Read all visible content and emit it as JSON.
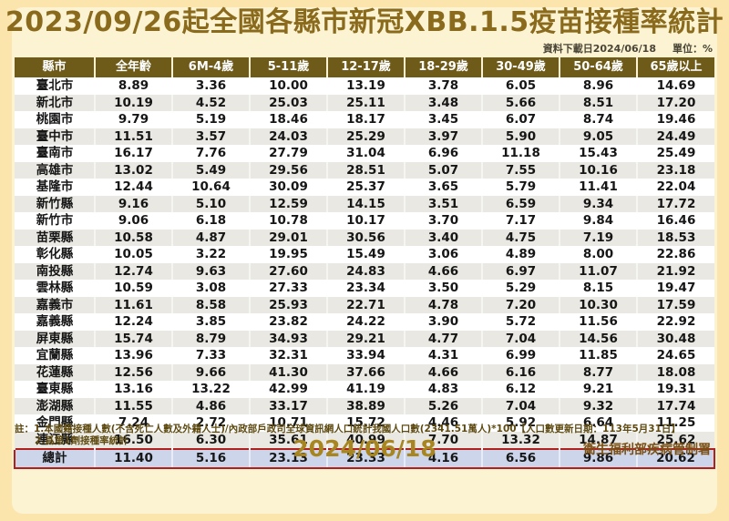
{
  "title": "2023/09/26起全國各縣市新冠XBB.1.5疫苗接種率統計",
  "meta": {
    "download_label": "資料下載日2024/06/18",
    "unit_label": "單位：%"
  },
  "chart_data": {
    "type": "table",
    "title": "2023/09/26起全國各縣市新冠XBB.1.5疫苗接種率統計",
    "unit": "%",
    "columns": [
      "縣市",
      "全年齡",
      "6M-4歲",
      "5-11歲",
      "12-17歲",
      "18-29歲",
      "30-49歲",
      "50-64歲",
      "65歲以上"
    ],
    "rows": [
      [
        "臺北市",
        "8.89",
        "3.36",
        "10.00",
        "13.19",
        "3.78",
        "6.05",
        "8.96",
        "14.69"
      ],
      [
        "新北市",
        "10.19",
        "4.52",
        "25.03",
        "25.11",
        "3.48",
        "5.66",
        "8.51",
        "17.20"
      ],
      [
        "桃園市",
        "9.79",
        "5.19",
        "18.46",
        "18.17",
        "3.45",
        "6.07",
        "8.74",
        "19.46"
      ],
      [
        "臺中市",
        "11.51",
        "3.57",
        "24.03",
        "25.29",
        "3.97",
        "5.90",
        "9.05",
        "24.49"
      ],
      [
        "臺南市",
        "16.17",
        "7.76",
        "27.79",
        "31.04",
        "6.96",
        "11.18",
        "15.43",
        "25.49"
      ],
      [
        "高雄市",
        "13.02",
        "5.49",
        "29.56",
        "28.51",
        "5.07",
        "7.55",
        "10.16",
        "23.18"
      ],
      [
        "基隆市",
        "12.44",
        "10.64",
        "30.09",
        "25.37",
        "3.65",
        "5.79",
        "11.41",
        "22.04"
      ],
      [
        "新竹縣",
        "9.16",
        "5.10",
        "12.59",
        "14.15",
        "3.51",
        "6.59",
        "9.34",
        "17.72"
      ],
      [
        "新竹市",
        "9.06",
        "6.18",
        "10.78",
        "10.17",
        "3.70",
        "7.17",
        "9.84",
        "16.46"
      ],
      [
        "苗栗縣",
        "10.58",
        "4.87",
        "29.01",
        "30.56",
        "3.40",
        "4.75",
        "7.19",
        "18.53"
      ],
      [
        "彰化縣",
        "10.05",
        "3.22",
        "19.95",
        "15.49",
        "3.06",
        "4.89",
        "8.00",
        "22.86"
      ],
      [
        "南投縣",
        "12.74",
        "9.63",
        "27.60",
        "24.83",
        "4.66",
        "6.97",
        "11.07",
        "21.92"
      ],
      [
        "雲林縣",
        "10.59",
        "3.08",
        "27.33",
        "23.34",
        "3.50",
        "5.29",
        "8.15",
        "19.47"
      ],
      [
        "嘉義市",
        "11.61",
        "8.58",
        "25.93",
        "22.71",
        "4.78",
        "7.20",
        "10.30",
        "17.59"
      ],
      [
        "嘉義縣",
        "12.24",
        "3.85",
        "23.82",
        "24.22",
        "3.90",
        "5.72",
        "11.56",
        "22.92"
      ],
      [
        "屏東縣",
        "15.74",
        "8.79",
        "34.93",
        "29.21",
        "4.77",
        "7.04",
        "14.56",
        "30.48"
      ],
      [
        "宜蘭縣",
        "13.96",
        "7.33",
        "32.31",
        "33.94",
        "4.31",
        "6.99",
        "11.85",
        "24.65"
      ],
      [
        "花蓮縣",
        "12.56",
        "9.66",
        "41.30",
        "37.66",
        "4.66",
        "6.16",
        "8.77",
        "18.08"
      ],
      [
        "臺東縣",
        "13.16",
        "13.22",
        "42.99",
        "41.19",
        "4.83",
        "6.12",
        "9.21",
        "19.31"
      ],
      [
        "澎湖縣",
        "11.55",
        "4.86",
        "33.17",
        "38.89",
        "5.26",
        "7.04",
        "9.32",
        "17.74"
      ],
      [
        "金門縣",
        "7.24",
        "2.72",
        "10.71",
        "15.72",
        "4.46",
        "5.92",
        "6.64",
        "11.25"
      ],
      [
        "連江縣",
        "16.50",
        "6.30",
        "35.61",
        "40.99",
        "7.70",
        "13.32",
        "14.87",
        "25.62"
      ]
    ],
    "total_row": [
      "總計",
      "11.40",
      "5.16",
      "23.13",
      "23.33",
      "4.16",
      "6.56",
      "9.86",
      "20.62"
    ]
  },
  "footer": {
    "note1": "註：1.本國籍接種人數(不含死亡人數及外籍人士)/內政部戶政司全球資訊網人口統計我國人口數(2341.51萬人)*100【人口數更新日期：113年5月31日】",
    "note2": "2.爲第1劑接種率統計",
    "date": "2024/06/18",
    "agency": "衛生福利部疾病管制署"
  },
  "colors": {
    "page_background": "#fbe5ac",
    "panel_background": "#fcf3d3",
    "title_gold": "#8a6a1c",
    "header_background": "#6e5a19",
    "stripe_gray": "#e9e8e2",
    "total_background": "#ccd5ea",
    "total_border_red": "#b0201c",
    "footer_date_gold": "#a8861f",
    "agency_brown": "#7a5016"
  }
}
